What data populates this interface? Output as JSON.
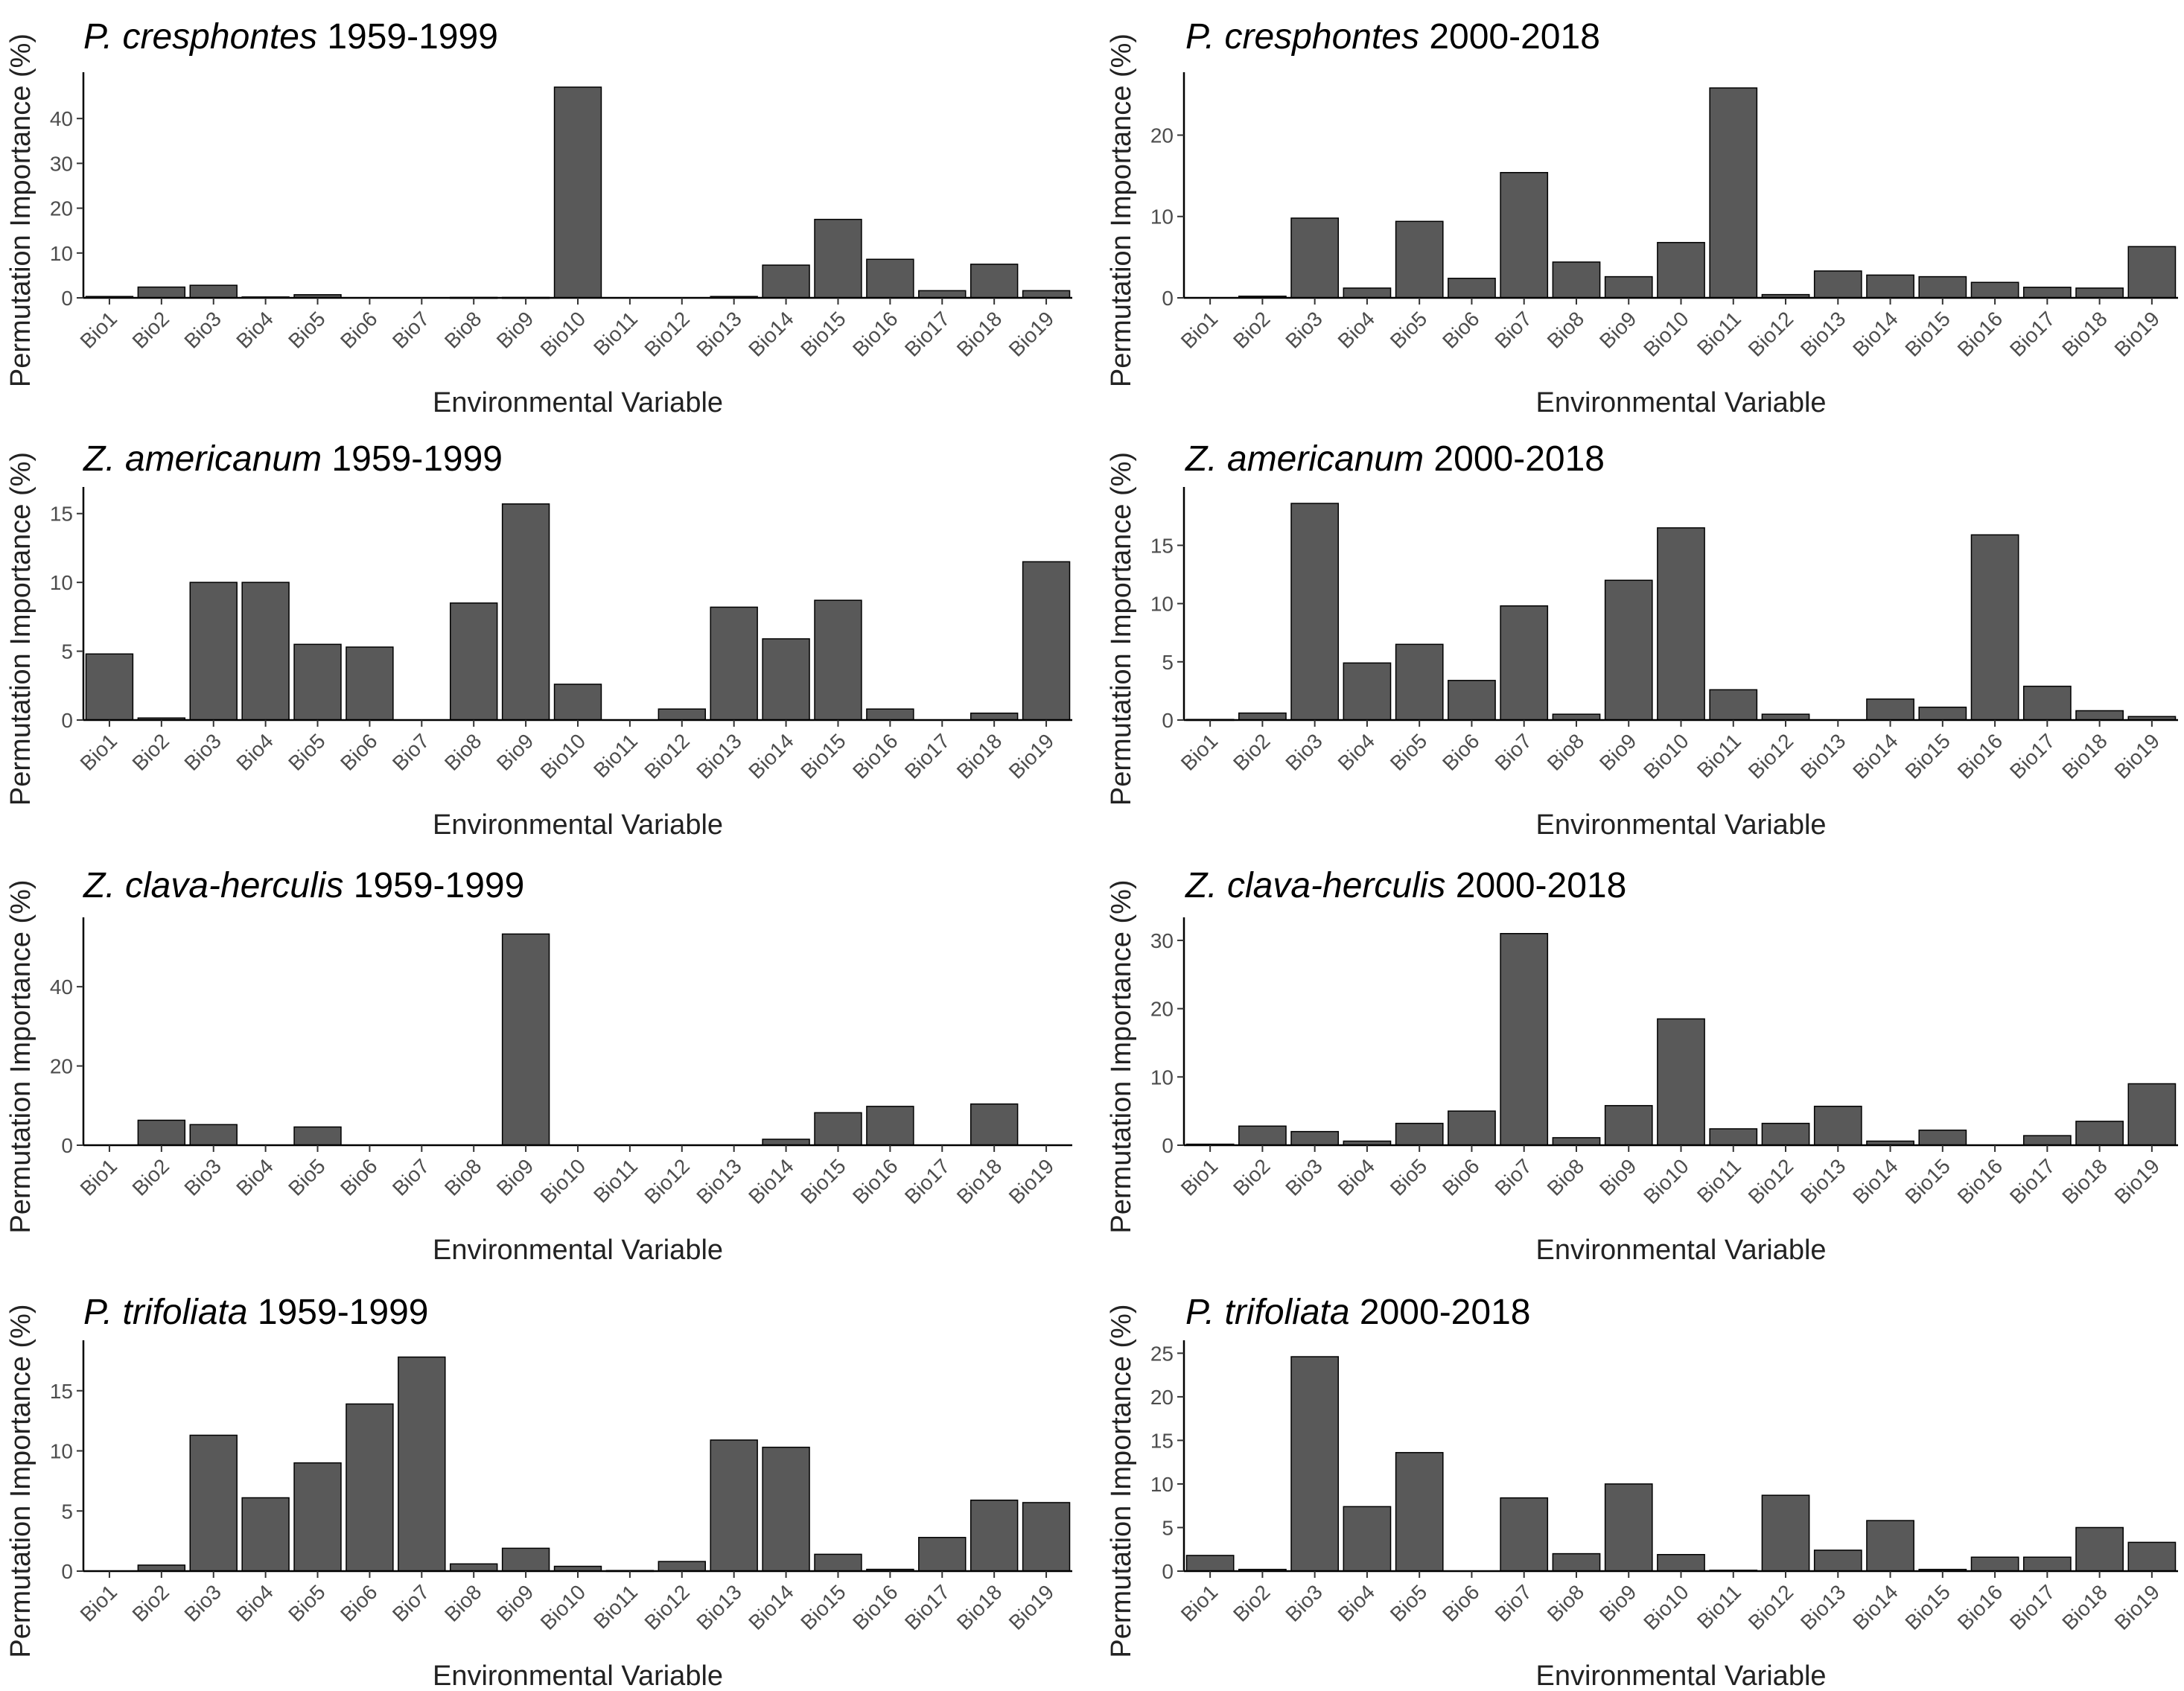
{
  "figure": {
    "xlabel": "Environmental Variable",
    "ylabel": "Permutation Importance (%)",
    "bar_color": "#595959",
    "background": "#ffffff"
  },
  "chart_data": [
    {
      "type": "bar",
      "species": "P. cresphontes",
      "period": "1959-1999",
      "categories": [
        "Bio1",
        "Bio2",
        "Bio3",
        "Bio4",
        "Bio5",
        "Bio6",
        "Bio7",
        "Bio8",
        "Bio9",
        "Bio10",
        "Bio11",
        "Bio12",
        "Bio13",
        "Bio14",
        "Bio15",
        "Bio16",
        "Bio17",
        "Bio18",
        "Bio19"
      ],
      "values": [
        0.3,
        2.4,
        2.8,
        0.2,
        0.7,
        0,
        0,
        0.1,
        0.1,
        47,
        0,
        0,
        0.3,
        7.3,
        17.5,
        8.6,
        1.6,
        7.5,
        1.6
      ],
      "yticks": [
        0,
        10,
        20,
        30,
        40
      ],
      "ylim": [
        0,
        49
      ],
      "xlabel": "Environmental Variable",
      "ylabel": "Permutation Importance (%)"
    },
    {
      "type": "bar",
      "species": "P. cresphontes",
      "period": "2000-2018",
      "categories": [
        "Bio1",
        "Bio2",
        "Bio3",
        "Bio4",
        "Bio5",
        "Bio6",
        "Bio7",
        "Bio8",
        "Bio9",
        "Bio10",
        "Bio11",
        "Bio12",
        "Bio13",
        "Bio14",
        "Bio15",
        "Bio16",
        "Bio17",
        "Bio18",
        "Bio19"
      ],
      "values": [
        0,
        0.2,
        9.8,
        1.2,
        9.4,
        2.4,
        15.4,
        4.4,
        2.6,
        6.8,
        25.8,
        0.4,
        3.3,
        2.8,
        2.6,
        1.9,
        1.3,
        1.2,
        6.3
      ],
      "yticks": [
        0,
        10,
        20
      ],
      "ylim": [
        0,
        27
      ],
      "xlabel": "Environmental Variable",
      "ylabel": "Permutation Importance (%)"
    },
    {
      "type": "bar",
      "species": "Z. americanum",
      "period": "1959-1999",
      "categories": [
        "Bio1",
        "Bio2",
        "Bio3",
        "Bio4",
        "Bio5",
        "Bio6",
        "Bio7",
        "Bio8",
        "Bio9",
        "Bio10",
        "Bio11",
        "Bio12",
        "Bio13",
        "Bio14",
        "Bio15",
        "Bio16",
        "Bio17",
        "Bio18",
        "Bio19"
      ],
      "values": [
        4.8,
        0.15,
        10,
        10,
        5.5,
        5.3,
        0,
        8.5,
        15.7,
        2.6,
        0,
        0.8,
        8.2,
        5.9,
        8.7,
        0.8,
        0,
        0.5,
        11.5
      ],
      "yticks": [
        0,
        5,
        10,
        15
      ],
      "ylim": [
        0,
        16.5
      ],
      "xlabel": "Environmental Variable",
      "ylabel": "Permutation Importance (%)"
    },
    {
      "type": "bar",
      "species": "Z. americanum",
      "period": "2000-2018",
      "categories": [
        "Bio1",
        "Bio2",
        "Bio3",
        "Bio4",
        "Bio5",
        "Bio6",
        "Bio7",
        "Bio8",
        "Bio9",
        "Bio10",
        "Bio11",
        "Bio12",
        "Bio13",
        "Bio14",
        "Bio15",
        "Bio16",
        "Bio17",
        "Bio18",
        "Bio19"
      ],
      "values": [
        0.05,
        0.6,
        18.6,
        4.9,
        6.5,
        3.4,
        9.8,
        0.5,
        12,
        16.5,
        2.6,
        0.5,
        0,
        1.8,
        1.1,
        15.9,
        2.9,
        0.8,
        0.3
      ],
      "yticks": [
        0,
        5,
        10,
        15
      ],
      "ylim": [
        0,
        19.5
      ],
      "xlabel": "Environmental Variable",
      "ylabel": "Permutation Importance (%)"
    },
    {
      "type": "bar",
      "species": "Z. clava-herculis",
      "period": "1959-1999",
      "categories": [
        "Bio1",
        "Bio2",
        "Bio3",
        "Bio4",
        "Bio5",
        "Bio6",
        "Bio7",
        "Bio8",
        "Bio9",
        "Bio10",
        "Bio11",
        "Bio12",
        "Bio13",
        "Bio14",
        "Bio15",
        "Bio16",
        "Bio17",
        "Bio18",
        "Bio19"
      ],
      "values": [
        0,
        6.3,
        5.2,
        0,
        4.6,
        0,
        0,
        0,
        53.3,
        0,
        0,
        0,
        0,
        1.5,
        8.2,
        9.8,
        0,
        10.4,
        0
      ],
      "yticks": [
        0,
        20,
        40
      ],
      "ylim": [
        0,
        56
      ],
      "xlabel": "Environmental Variable",
      "ylabel": "Permutation Importance (%)"
    },
    {
      "type": "bar",
      "species": "Z. clava-herculis",
      "period": "2000-2018",
      "categories": [
        "Bio1",
        "Bio2",
        "Bio3",
        "Bio4",
        "Bio5",
        "Bio6",
        "Bio7",
        "Bio8",
        "Bio9",
        "Bio10",
        "Bio11",
        "Bio12",
        "Bio13",
        "Bio14",
        "Bio15",
        "Bio16",
        "Bio17",
        "Bio18",
        "Bio19"
      ],
      "values": [
        0.15,
        2.8,
        2,
        0.6,
        3.2,
        5,
        31,
        1.1,
        5.8,
        18.5,
        2.4,
        3.2,
        5.7,
        0.6,
        2.2,
        0,
        1.4,
        3.5,
        9
      ],
      "yticks": [
        0,
        10,
        20,
        30
      ],
      "ylim": [
        0,
        32.5
      ],
      "xlabel": "Environmental Variable",
      "ylabel": "Permutation Importance (%)"
    },
    {
      "type": "bar",
      "species": "P. trifoliata",
      "period": "1959-1999",
      "categories": [
        "Bio1",
        "Bio2",
        "Bio3",
        "Bio4",
        "Bio5",
        "Bio6",
        "Bio7",
        "Bio8",
        "Bio9",
        "Bio10",
        "Bio11",
        "Bio12",
        "Bio13",
        "Bio14",
        "Bio15",
        "Bio16",
        "Bio17",
        "Bio18",
        "Bio19"
      ],
      "values": [
        0,
        0.5,
        11.3,
        6.1,
        9,
        13.9,
        17.8,
        0.6,
        1.9,
        0.4,
        0.05,
        0.8,
        10.9,
        10.3,
        1.4,
        0.15,
        2.8,
        5.9,
        5.7
      ],
      "yticks": [
        0,
        5,
        10,
        15
      ],
      "ylim": [
        0,
        18.7
      ],
      "xlabel": "Environmental Variable",
      "ylabel": "Permutation Importance (%)"
    },
    {
      "type": "bar",
      "species": "P. trifoliata",
      "period": "2000-2018",
      "categories": [
        "Bio1",
        "Bio2",
        "Bio3",
        "Bio4",
        "Bio5",
        "Bio6",
        "Bio7",
        "Bio8",
        "Bio9",
        "Bio10",
        "Bio11",
        "Bio12",
        "Bio13",
        "Bio14",
        "Bio15",
        "Bio16",
        "Bio17",
        "Bio18",
        "Bio19"
      ],
      "values": [
        1.8,
        0.2,
        24.6,
        7.4,
        13.6,
        0,
        8.4,
        2,
        10,
        1.9,
        0.1,
        8.7,
        2.4,
        5.8,
        0.2,
        1.6,
        1.6,
        5,
        3.3
      ],
      "yticks": [
        0,
        5,
        10,
        15,
        20,
        25
      ],
      "ylim": [
        0,
        25.8
      ],
      "xlabel": "Environmental Variable",
      "ylabel": "Permutation Importance (%)"
    }
  ]
}
